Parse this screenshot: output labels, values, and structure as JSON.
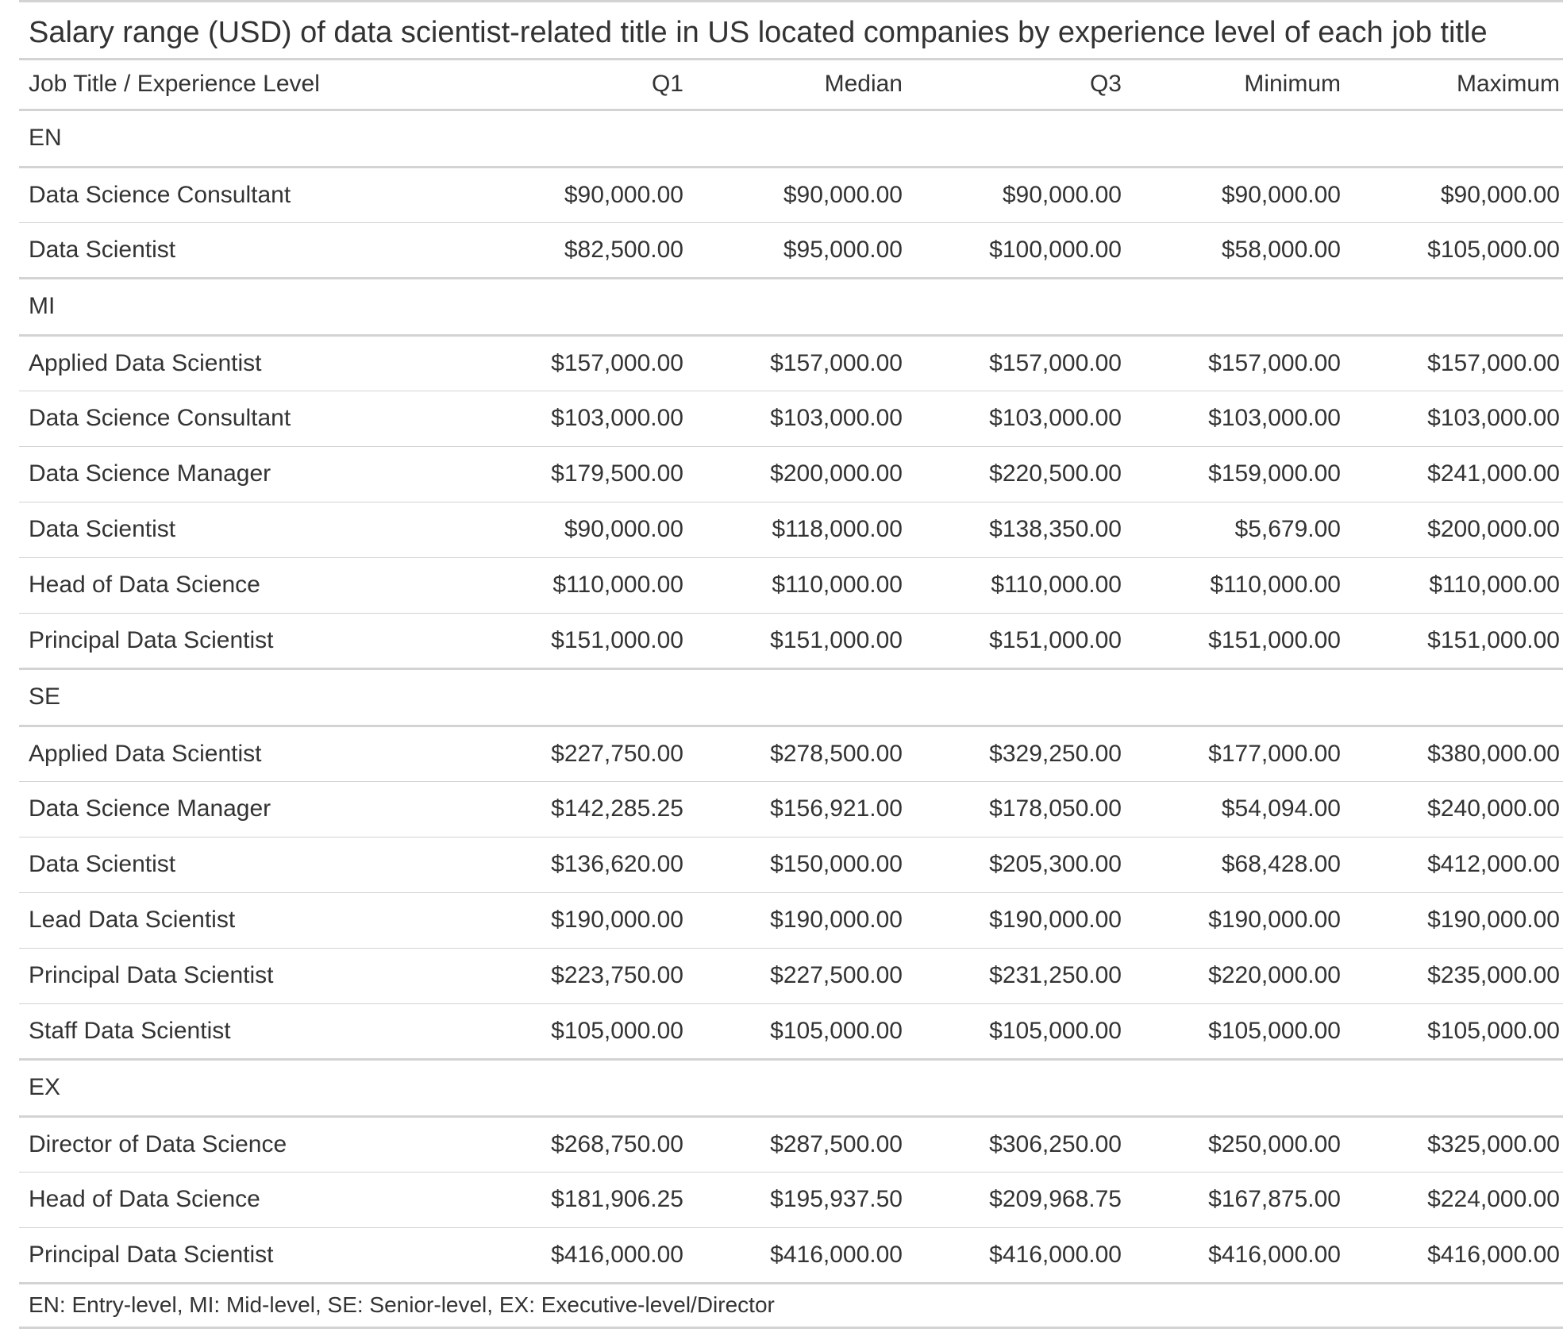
{
  "chart_data": {
    "type": "table",
    "title": "Salary range (USD) of data scientist-related title in US located companies by experience level of each job title",
    "columns": [
      "Job Title / Experience Level",
      "Q1",
      "Median",
      "Q3",
      "Minimum",
      "Maximum"
    ],
    "groups": [
      {
        "label": "EN",
        "rows": [
          {
            "title": "Data Science Consultant",
            "values": [
              "$90,000.00",
              "$90,000.00",
              "$90,000.00",
              "$90,000.00",
              "$90,000.00"
            ]
          },
          {
            "title": "Data Scientist",
            "values": [
              "$82,500.00",
              "$95,000.00",
              "$100,000.00",
              "$58,000.00",
              "$105,000.00"
            ]
          }
        ]
      },
      {
        "label": "MI",
        "rows": [
          {
            "title": "Applied Data Scientist",
            "values": [
              "$157,000.00",
              "$157,000.00",
              "$157,000.00",
              "$157,000.00",
              "$157,000.00"
            ]
          },
          {
            "title": "Data Science Consultant",
            "values": [
              "$103,000.00",
              "$103,000.00",
              "$103,000.00",
              "$103,000.00",
              "$103,000.00"
            ]
          },
          {
            "title": "Data Science Manager",
            "values": [
              "$179,500.00",
              "$200,000.00",
              "$220,500.00",
              "$159,000.00",
              "$241,000.00"
            ]
          },
          {
            "title": "Data Scientist",
            "values": [
              "$90,000.00",
              "$118,000.00",
              "$138,350.00",
              "$5,679.00",
              "$200,000.00"
            ]
          },
          {
            "title": "Head of Data Science",
            "values": [
              "$110,000.00",
              "$110,000.00",
              "$110,000.00",
              "$110,000.00",
              "$110,000.00"
            ]
          },
          {
            "title": "Principal Data Scientist",
            "values": [
              "$151,000.00",
              "$151,000.00",
              "$151,000.00",
              "$151,000.00",
              "$151,000.00"
            ]
          }
        ]
      },
      {
        "label": "SE",
        "rows": [
          {
            "title": "Applied Data Scientist",
            "values": [
              "$227,750.00",
              "$278,500.00",
              "$329,250.00",
              "$177,000.00",
              "$380,000.00"
            ]
          },
          {
            "title": "Data Science Manager",
            "values": [
              "$142,285.25",
              "$156,921.00",
              "$178,050.00",
              "$54,094.00",
              "$240,000.00"
            ]
          },
          {
            "title": "Data Scientist",
            "values": [
              "$136,620.00",
              "$150,000.00",
              "$205,300.00",
              "$68,428.00",
              "$412,000.00"
            ]
          },
          {
            "title": "Lead Data Scientist",
            "values": [
              "$190,000.00",
              "$190,000.00",
              "$190,000.00",
              "$190,000.00",
              "$190,000.00"
            ]
          },
          {
            "title": "Principal Data Scientist",
            "values": [
              "$223,750.00",
              "$227,500.00",
              "$231,250.00",
              "$220,000.00",
              "$235,000.00"
            ]
          },
          {
            "title": "Staff Data Scientist",
            "values": [
              "$105,000.00",
              "$105,000.00",
              "$105,000.00",
              "$105,000.00",
              "$105,000.00"
            ]
          }
        ]
      },
      {
        "label": "EX",
        "rows": [
          {
            "title": "Director of Data Science",
            "values": [
              "$268,750.00",
              "$287,500.00",
              "$306,250.00",
              "$250,000.00",
              "$325,000.00"
            ]
          },
          {
            "title": "Head of Data Science",
            "values": [
              "$181,906.25",
              "$195,937.50",
              "$209,968.75",
              "$167,875.00",
              "$224,000.00"
            ]
          },
          {
            "title": "Principal Data Scientist",
            "values": [
              "$416,000.00",
              "$416,000.00",
              "$416,000.00",
              "$416,000.00",
              "$416,000.00"
            ]
          }
        ]
      }
    ],
    "footnote": "EN: Entry-level, MI: Mid-level, SE: Senior-level, EX: Executive-level/Director"
  }
}
